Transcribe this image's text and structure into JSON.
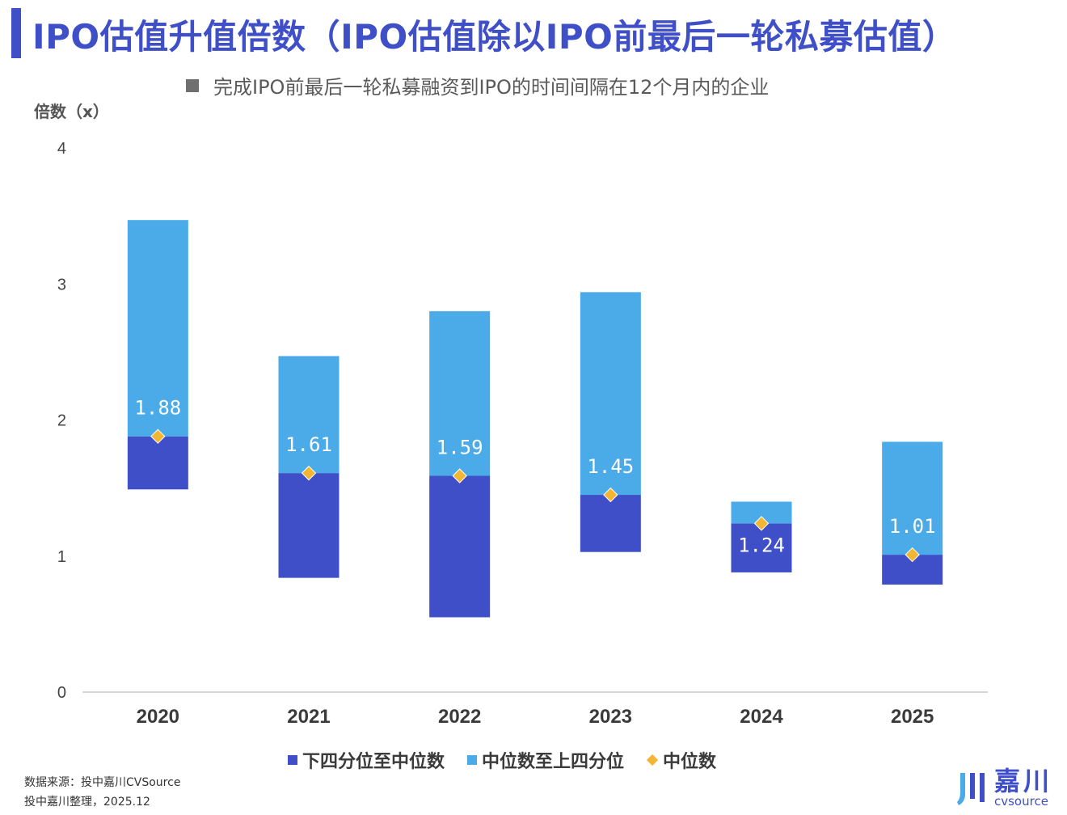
{
  "header": {
    "title": "IPO估值升值倍数（IPO估值除以IPO前最后一轮私募估值）",
    "subtitle": "完成IPO前最后一轮私募融资到IPO的时间间隔在12个月内的企业"
  },
  "colors": {
    "accent": "#3f4fc8",
    "lower_quartile_bar": "#3f4fc8",
    "upper_quartile_bar": "#4aabe8",
    "median_marker": "#f2b632"
  },
  "chart_data": {
    "type": "bar",
    "subtype": "floating-stacked",
    "ylabel": "倍数（x）",
    "ylim": [
      0,
      4
    ],
    "yticks": [
      0,
      1,
      2,
      3,
      4
    ],
    "categories": [
      "2020",
      "2021",
      "2022",
      "2023",
      "2024",
      "2025"
    ],
    "series": [
      {
        "name": "下四分位至中位数",
        "from": [
          1.49,
          0.84,
          0.55,
          1.03,
          0.88,
          0.79
        ],
        "to": [
          1.88,
          1.61,
          1.59,
          1.45,
          1.24,
          1.01
        ]
      },
      {
        "name": "中位数至上四分位",
        "from": [
          1.88,
          1.61,
          1.59,
          1.45,
          1.24,
          1.01
        ],
        "to": [
          3.47,
          2.47,
          2.8,
          2.94,
          1.4,
          1.84
        ]
      },
      {
        "name": "中位数",
        "values": [
          1.88,
          1.61,
          1.59,
          1.45,
          1.24,
          1.01
        ]
      }
    ],
    "data_labels": [
      "1.88",
      "1.61",
      "1.59",
      "1.45",
      "1.24",
      "1.01"
    ],
    "legend_position": "bottom"
  },
  "footer": {
    "source_line1": "数据来源：投中嘉川CVSource",
    "source_line2": "投中嘉川整理，2025.12",
    "logo_cn": "嘉川",
    "logo_en": "cvsource"
  }
}
